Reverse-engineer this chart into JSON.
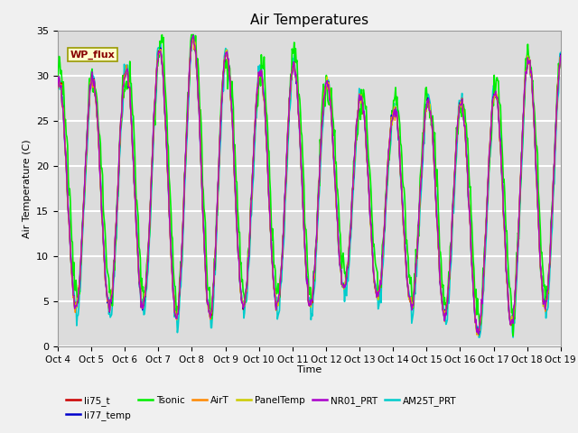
{
  "title": "Air Temperatures",
  "xlabel": "Time",
  "ylabel": "Air Temperature (C)",
  "ylim": [
    0,
    35
  ],
  "yticks": [
    0,
    5,
    10,
    15,
    20,
    25,
    30,
    35
  ],
  "x_tick_labels": [
    "Oct 4",
    "Oct 5",
    "Oct 6",
    "Oct 7",
    "Oct 8",
    "Oct 9",
    "Oct 10",
    "Oct 11",
    "Oct 12",
    "Oct 13",
    "Oct 14",
    "Oct 15",
    "Oct 16",
    "Oct 17",
    "Oct 18",
    "Oct 19"
  ],
  "annotation_text": "WP_flux",
  "annotation_bbox_facecolor": "#FFFFCC",
  "annotation_bbox_edgecolor": "#999900",
  "annotation_text_color": "#880000",
  "series": [
    {
      "name": "li75_t",
      "color": "#CC0000",
      "lw": 1.0,
      "zorder": 5
    },
    {
      "name": "li77_temp",
      "color": "#0000CC",
      "lw": 1.0,
      "zorder": 5
    },
    {
      "name": "Tsonic",
      "color": "#00EE00",
      "lw": 1.2,
      "zorder": 4
    },
    {
      "name": "AirT",
      "color": "#FF8800",
      "lw": 1.0,
      "zorder": 5
    },
    {
      "name": "PanelTemp",
      "color": "#CCCC00",
      "lw": 1.0,
      "zorder": 5
    },
    {
      "name": "NR01_PRT",
      "color": "#AA00CC",
      "lw": 1.0,
      "zorder": 5
    },
    {
      "name": "AM25T_PRT",
      "color": "#00CCCC",
      "lw": 1.2,
      "zorder": 3
    }
  ],
  "background_color": "#DCDCDC",
  "grid_color": "#FFFFFF",
  "title_fontsize": 11,
  "fig_facecolor": "#F0F0F0"
}
